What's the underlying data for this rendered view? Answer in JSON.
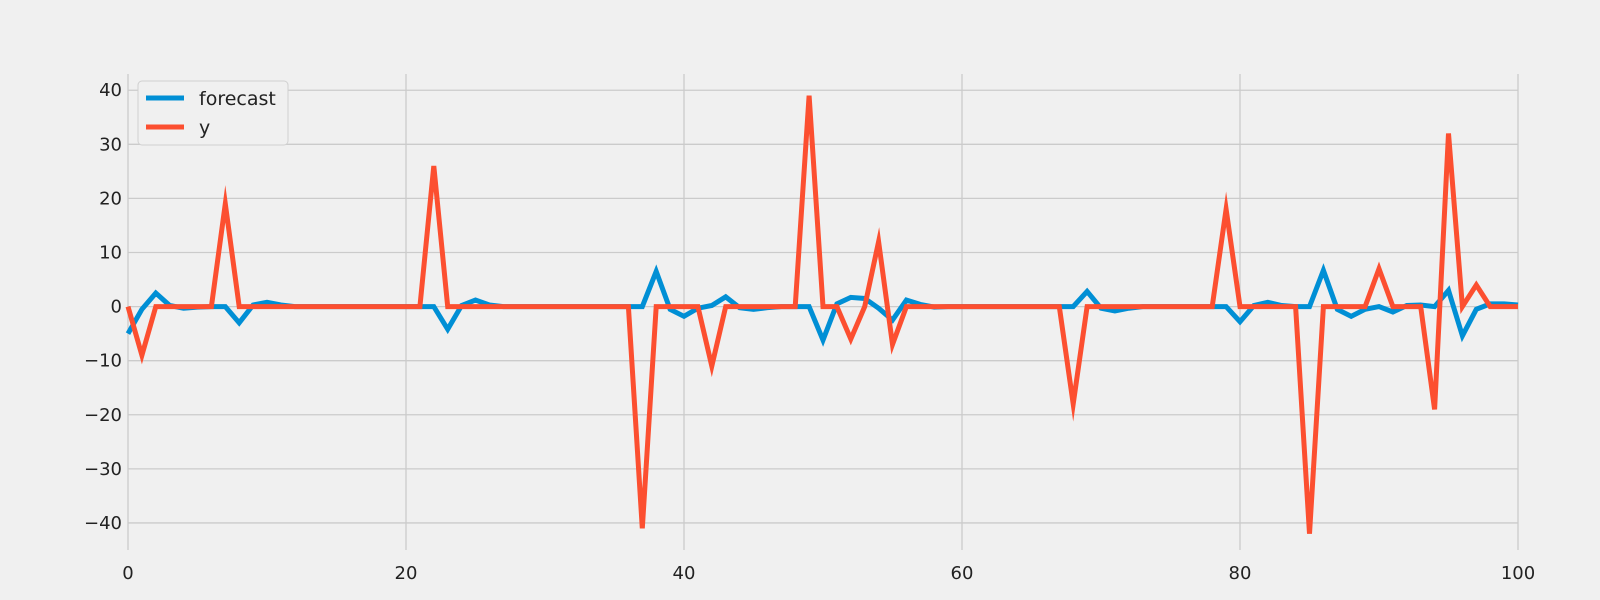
{
  "chart_data": {
    "type": "line",
    "title": "",
    "xlabel": "",
    "ylabel": "",
    "xlim": [
      0,
      100
    ],
    "ylim": [
      -45,
      43
    ],
    "xticks": [
      0,
      20,
      40,
      60,
      80,
      100
    ],
    "yticks": [
      -40,
      -30,
      -20,
      -10,
      0,
      10,
      20,
      30,
      40
    ],
    "xtick_labels": [
      "0",
      "20",
      "40",
      "60",
      "80",
      "100"
    ],
    "ytick_labels": [
      "−40",
      "−30",
      "−20",
      "−10",
      "0",
      "10",
      "20",
      "30",
      "40"
    ],
    "grid": true,
    "legend_position": "upper-left",
    "series": [
      {
        "name": "forecast",
        "color": "#008fd5",
        "x": [
          0,
          1,
          2,
          3,
          4,
          5,
          6,
          7,
          8,
          9,
          10,
          11,
          12,
          13,
          14,
          15,
          16,
          17,
          18,
          19,
          20,
          21,
          22,
          23,
          24,
          25,
          26,
          27,
          28,
          29,
          30,
          31,
          32,
          33,
          34,
          35,
          36,
          37,
          38,
          39,
          40,
          41,
          42,
          43,
          44,
          45,
          46,
          47,
          48,
          49,
          50,
          51,
          52,
          53,
          54,
          55,
          56,
          57,
          58,
          59,
          60,
          61,
          62,
          63,
          64,
          65,
          66,
          67,
          68,
          69,
          70,
          71,
          72,
          73,
          74,
          75,
          76,
          77,
          78,
          79,
          80,
          81,
          82,
          83,
          84,
          85,
          86,
          87,
          88,
          89,
          90,
          91,
          92,
          93,
          94,
          95,
          96,
          97,
          98,
          99,
          100
        ],
        "y": [
          -5,
          -0.5,
          2.5,
          0.2,
          -0.3,
          -0.1,
          0,
          0,
          -3,
          0.3,
          0.8,
          0.3,
          0,
          0,
          0,
          0,
          0,
          0,
          0,
          0,
          0,
          0,
          0,
          -4.2,
          0.2,
          1.2,
          0.3,
          0,
          0,
          0,
          0,
          0,
          0,
          0,
          0,
          0,
          0,
          0,
          6.5,
          -0.5,
          -1.8,
          -0.3,
          0.2,
          1.8,
          -0.2,
          -0.5,
          -0.2,
          0,
          0,
          0,
          -6.2,
          0.5,
          1.7,
          1.5,
          -0.3,
          -2.5,
          1.2,
          0.4,
          -0.1,
          0,
          0,
          0,
          0,
          0,
          0,
          0,
          0,
          0,
          0,
          2.8,
          -0.3,
          -0.8,
          -0.3,
          0,
          0,
          0,
          0,
          0,
          0,
          0,
          -2.8,
          0.2,
          0.8,
          0.2,
          0,
          0,
          6.7,
          -0.5,
          -1.8,
          -0.5,
          0,
          -1,
          0.2,
          0.3,
          0,
          3,
          -5.4,
          -0.5,
          0.5,
          0.5,
          0.3
        ]
      },
      {
        "name": "y",
        "color": "#fc4f30",
        "x": [
          0,
          1,
          2,
          3,
          4,
          5,
          6,
          7,
          8,
          9,
          10,
          11,
          12,
          13,
          14,
          15,
          16,
          17,
          18,
          19,
          20,
          21,
          22,
          23,
          24,
          25,
          26,
          27,
          28,
          29,
          30,
          31,
          32,
          33,
          34,
          35,
          36,
          37,
          38,
          39,
          40,
          41,
          42,
          43,
          44,
          45,
          46,
          47,
          48,
          49,
          50,
          51,
          52,
          53,
          54,
          55,
          56,
          57,
          58,
          59,
          60,
          61,
          62,
          63,
          64,
          65,
          66,
          67,
          68,
          69,
          70,
          71,
          72,
          73,
          74,
          75,
          76,
          77,
          78,
          79,
          80,
          81,
          82,
          83,
          84,
          85,
          86,
          87,
          88,
          89,
          90,
          91,
          92,
          93,
          94,
          95,
          96,
          97,
          98,
          99,
          100
        ],
        "y": [
          0,
          -9,
          0,
          0,
          0,
          0,
          0,
          19,
          0,
          0,
          0,
          0,
          0,
          0,
          0,
          0,
          0,
          0,
          0,
          0,
          0,
          0,
          26,
          0,
          0,
          0,
          0,
          0,
          0,
          0,
          0,
          0,
          0,
          0,
          0,
          0,
          0,
          -41,
          0,
          0,
          0,
          0,
          -11,
          0,
          0,
          0,
          0,
          0,
          0,
          39,
          0,
          0,
          -6,
          0,
          12,
          -7,
          0,
          0,
          0,
          0,
          0,
          0,
          0,
          0,
          0,
          0,
          0,
          0,
          -18,
          0,
          0,
          0,
          0,
          0,
          0,
          0,
          0,
          0,
          0,
          18,
          0,
          0,
          0,
          0,
          0,
          -42,
          0,
          0,
          0,
          0,
          7,
          0,
          0,
          0,
          -19,
          32,
          0,
          4,
          0,
          0,
          0
        ]
      }
    ]
  }
}
